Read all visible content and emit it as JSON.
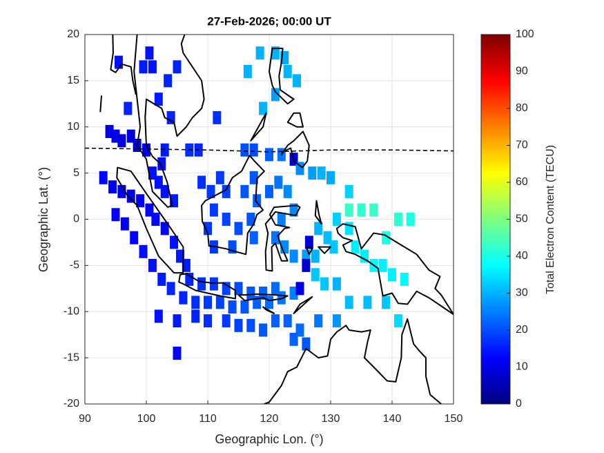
{
  "chart_data": {
    "type": "cellmap",
    "title": "27-Feb-2026; 00:00 UT",
    "x_label": "Geographic Lon. (°)",
    "y_label": "Geographic Lat. (°)",
    "colorbar_label": "Total Electron Content (TECU)",
    "colormap": "jet",
    "grid": true,
    "xlim": [
      90,
      150
    ],
    "ylim": [
      -20,
      20
    ],
    "clim": [
      0,
      100
    ],
    "xticks": [
      90,
      100,
      110,
      120,
      130,
      140,
      150
    ],
    "yticks": [
      -20,
      -15,
      -10,
      -5,
      0,
      5,
      10,
      15,
      20
    ],
    "cticks": [
      0,
      10,
      20,
      30,
      40,
      50,
      60,
      70,
      80,
      90,
      100
    ],
    "x": [
      100.5,
      95.5,
      99.5,
      101,
      105,
      103.5,
      102,
      97,
      104,
      111.5,
      116.5,
      118.5,
      121,
      122.5,
      123,
      124.5,
      121,
      119,
      94,
      95,
      96,
      97.5,
      98.5,
      100,
      103,
      107,
      108.5,
      116,
      117.5,
      120,
      122,
      124,
      125,
      127,
      128.5,
      130,
      133,
      93,
      94.5,
      96,
      97.5,
      99,
      100.5,
      101.5,
      103,
      104.5,
      105.5,
      106.5,
      95,
      96.5,
      98,
      99.5,
      101,
      102.5,
      104,
      106,
      108,
      110,
      112,
      114,
      116,
      118,
      120,
      122,
      124,
      125,
      107,
      109,
      111,
      113,
      115,
      117,
      119,
      121,
      101,
      102,
      103,
      104.5,
      102.5,
      109,
      110.5,
      112,
      113,
      111,
      113,
      115,
      117,
      118,
      116,
      114,
      110,
      111,
      117.5,
      117.5,
      120,
      121.5,
      123,
      124,
      122,
      121,
      122.5,
      124,
      126,
      126,
      127.5,
      126.5,
      128,
      129.5,
      130.5,
      131,
      133,
      134,
      135.5,
      137,
      139,
      141,
      143,
      137,
      135,
      133,
      138.5,
      140,
      142,
      127.5,
      129,
      131,
      133,
      136,
      139,
      141,
      131,
      128,
      125,
      124,
      126,
      102,
      105,
      108,
      110,
      113,
      115,
      117,
      119,
      121,
      123,
      105
    ],
    "y": [
      18,
      17,
      16.5,
      16.5,
      16.5,
      15,
      13,
      12,
      11,
      11,
      16,
      18,
      18,
      17.5,
      16,
      15,
      13.5,
      12,
      9.5,
      9,
      8.5,
      9,
      8,
      7.5,
      7.5,
      7.5,
      7.5,
      7.5,
      7.5,
      7,
      7,
      6.5,
      5.5,
      5,
      5,
      4.5,
      3,
      4.5,
      3.5,
      3,
      2.5,
      2,
      1,
      0,
      -1,
      -2.5,
      -4,
      -5,
      0.5,
      -0.5,
      -2,
      -3.5,
      -5,
      -6.5,
      -7.5,
      -8.5,
      -9,
      -9,
      -9,
      -9.5,
      -9.5,
      -9,
      -9,
      -8.5,
      -8,
      -7.5,
      -6.5,
      -7,
      -7,
      -7.5,
      -7.5,
      -8,
      -8,
      -7.5,
      5,
      4,
      3,
      2,
      6,
      4,
      3,
      4.5,
      3,
      1,
      0,
      -1,
      0,
      2,
      3,
      -3,
      -1,
      -3,
      4.5,
      -2,
      3,
      4,
      3,
      1,
      0,
      -2,
      -3,
      -4,
      -4,
      -5,
      -4,
      -2.5,
      -1,
      -2,
      -3,
      0,
      -1,
      -3,
      -4,
      -5,
      -2,
      0,
      0,
      1,
      1,
      1,
      -5,
      -6,
      -6.5,
      -6,
      -7,
      -7,
      -9,
      -9,
      -9,
      -11,
      -11,
      -11,
      -12,
      -13,
      -13.5,
      -10.5,
      -11,
      -10.5,
      -11,
      -11,
      -11.5,
      -11.5,
      -12,
      -11,
      -11,
      -14.5
    ],
    "values": [
      14,
      14,
      15,
      14,
      16,
      16,
      15,
      16,
      16,
      17,
      30,
      30,
      30,
      29,
      30,
      30,
      28,
      30,
      10,
      10,
      9,
      9,
      10,
      11,
      15,
      17,
      16,
      20,
      20,
      22,
      24,
      10,
      26,
      28,
      30,
      29,
      33,
      13,
      12,
      11,
      12,
      12,
      13,
      13,
      13,
      14,
      15,
      15,
      12,
      12,
      13,
      14,
      14,
      15,
      16,
      16,
      17,
      18,
      19,
      20,
      21,
      22,
      23,
      24,
      25,
      10,
      16,
      17,
      18,
      19,
      20,
      21,
      22,
      23,
      14,
      14,
      14,
      15,
      14,
      17,
      18,
      18,
      19,
      18,
      19,
      20,
      21,
      22,
      21,
      20,
      18,
      18,
      21,
      22,
      22,
      24,
      26,
      26,
      25,
      24,
      26,
      26,
      28,
      8,
      30,
      9,
      30,
      31,
      32,
      33,
      35,
      36,
      36,
      37,
      40,
      42,
      40,
      43,
      42,
      43,
      36,
      36,
      37,
      32,
      32,
      30,
      31,
      31,
      32,
      34,
      27,
      24,
      23,
      22,
      21,
      14,
      15,
      16,
      17,
      18,
      19,
      20,
      21,
      22,
      22,
      13
    ]
  }
}
